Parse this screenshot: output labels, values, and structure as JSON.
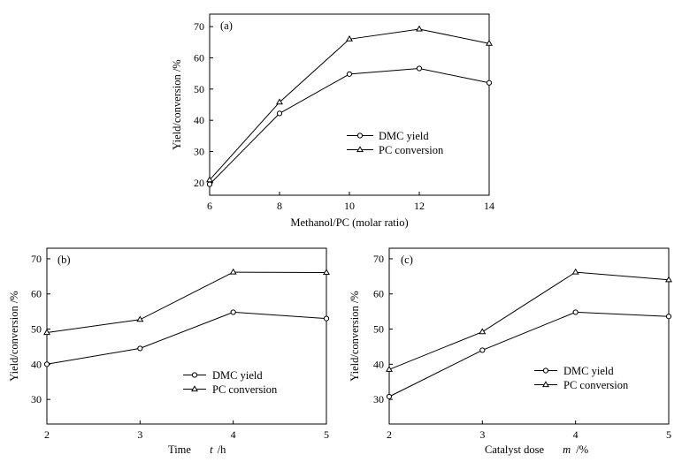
{
  "chart_data": [
    {
      "type": "line",
      "panel_label": "(a)",
      "xlabel": "Methanol/PC (molar ratio)",
      "ylabel": "Yield/conversion /%",
      "xlim": [
        6,
        14
      ],
      "ylim": [
        16,
        74
      ],
      "xticks": [
        6,
        8,
        10,
        12,
        14
      ],
      "yticks": [
        20,
        30,
        40,
        50,
        60,
        70
      ],
      "x": [
        6,
        8,
        10,
        12,
        14
      ],
      "series": [
        {
          "name": "DMC yield",
          "marker": "circle",
          "values": [
            19.5,
            42.2,
            54.8,
            56.6,
            52.0
          ]
        },
        {
          "name": "PC conversion",
          "marker": "triangle",
          "values": [
            20.9,
            45.8,
            66.0,
            69.2,
            64.6
          ]
        }
      ],
      "legend": "center-right",
      "grid": false
    },
    {
      "type": "line",
      "panel_label": "(b)",
      "xlabel": "Time",
      "xlabel_var": "t",
      "xlabel_unit": "/h",
      "ylabel": "Yield/conversion /%",
      "xlim": [
        2,
        5
      ],
      "ylim": [
        23,
        73
      ],
      "xticks": [
        2,
        3,
        4,
        5
      ],
      "yticks": [
        30,
        40,
        50,
        60,
        70
      ],
      "x": [
        2,
        3,
        4,
        5
      ],
      "series": [
        {
          "name": "DMC yield",
          "marker": "circle",
          "values": [
            40.0,
            44.5,
            54.8,
            53.0
          ]
        },
        {
          "name": "PC conversion",
          "marker": "triangle",
          "values": [
            49.0,
            52.7,
            66.2,
            66.1
          ]
        }
      ],
      "legend": "center-right",
      "grid": false
    },
    {
      "type": "line",
      "panel_label": "(c)",
      "xlabel": "Catalyst dose",
      "xlabel_var": "m",
      "xlabel_unit": "/%",
      "ylabel": "Yield/conversion /%",
      "xlim": [
        2,
        5
      ],
      "ylim": [
        23,
        73
      ],
      "xticks": [
        2,
        3,
        4,
        5
      ],
      "yticks": [
        30,
        40,
        50,
        60,
        70
      ],
      "x": [
        2,
        3,
        4,
        5
      ],
      "series": [
        {
          "name": "DMC yield",
          "marker": "circle",
          "values": [
            30.8,
            44.0,
            54.8,
            53.6
          ]
        },
        {
          "name": "PC conversion",
          "marker": "triangle",
          "values": [
            38.5,
            49.2,
            66.2,
            64.0
          ]
        }
      ],
      "legend": "center-right",
      "grid": false
    }
  ]
}
